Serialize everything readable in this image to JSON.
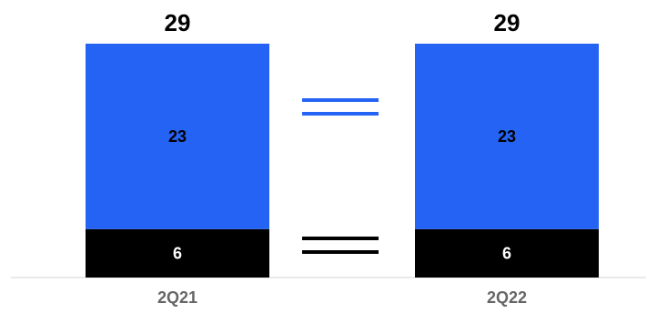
{
  "chart_data": {
    "type": "bar",
    "stacked": true,
    "categories": [
      "2Q21",
      "2Q22"
    ],
    "series": [
      {
        "values": [
          6,
          6
        ],
        "color": "#000000",
        "label_color": "#ffffff"
      },
      {
        "values": [
          23,
          23
        ],
        "color": "#2563f5",
        "label_color": "#000000"
      }
    ],
    "totals": [
      29,
      29
    ],
    "legend_markers": [
      {
        "color": "#2563f5",
        "symbol": "double-line"
      },
      {
        "color": "#000000",
        "symbol": "double-line"
      }
    ],
    "ylim": [
      0,
      29
    ],
    "grid": false,
    "title": "",
    "xlabel": "",
    "ylabel": ""
  }
}
